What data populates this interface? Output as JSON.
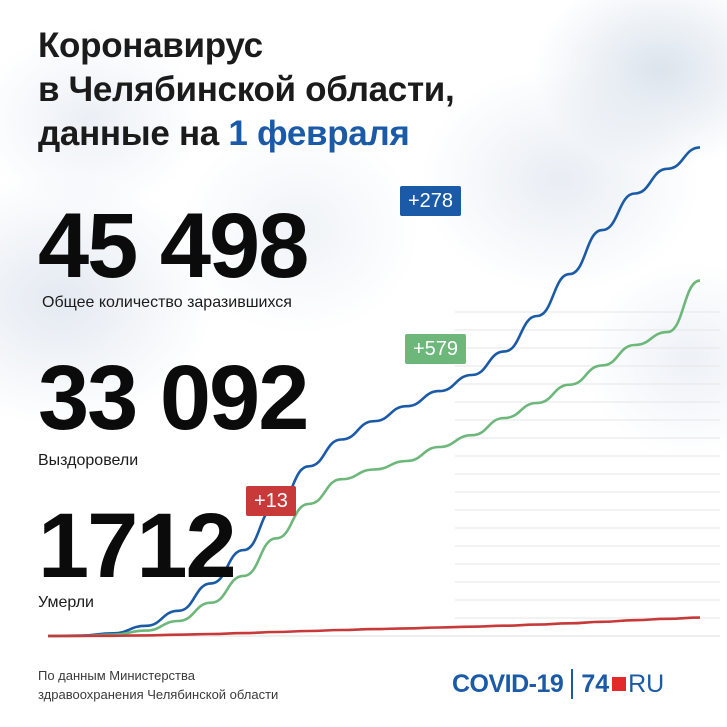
{
  "title": {
    "line1": "Коронавирус",
    "line2": "в Челябинской области,",
    "line3_prefix": "данные на",
    "line3_date": "1 февраля"
  },
  "stats": {
    "infected": {
      "value": "45 498",
      "label": "Общее количество заразившихся",
      "delta": "+278",
      "color": "#1a5aa6"
    },
    "recovered": {
      "value": "33 092",
      "label": "Выздоровели",
      "delta": "+579",
      "color": "#6db77a"
    },
    "deaths": {
      "value": "1712",
      "label": "Умерли",
      "delta": "+13",
      "color": "#c83a3a"
    }
  },
  "footer": {
    "line1": "По данным Министерства",
    "line2": "здравоохранения Челябинской области"
  },
  "logo": {
    "covid": "COVID-19",
    "site_number": "74",
    "site_domain": "RU"
  },
  "chart_data": {
    "type": "line",
    "title": "",
    "xlabel": "",
    "ylabel": "",
    "x": [
      0,
      0.05,
      0.1,
      0.15,
      0.2,
      0.25,
      0.3,
      0.35,
      0.4,
      0.45,
      0.5,
      0.55,
      0.6,
      0.65,
      0.7,
      0.75,
      0.8,
      0.85,
      0.9,
      0.95,
      1.0
    ],
    "ylim": [
      0,
      46000
    ],
    "grid": true,
    "series": [
      {
        "color": "#1a5aa6",
        "values": [
          0,
          40,
          250,
          950,
          2350,
          4900,
          8000,
          12100,
          15800,
          18300,
          20000,
          21400,
          22800,
          24300,
          26500,
          29800,
          33700,
          37800,
          41200,
          43500,
          45498
        ]
      },
      {
        "color": "#6db77a",
        "values": [
          0,
          15,
          120,
          500,
          1400,
          3100,
          5600,
          9100,
          12300,
          14600,
          15500,
          16300,
          17600,
          18700,
          20300,
          21700,
          23400,
          25200,
          27100,
          28300,
          33092
        ]
      },
      {
        "color": "#c83a3a",
        "values": [
          0,
          5,
          20,
          60,
          120,
          190,
          270,
          370,
          470,
          560,
          640,
          710,
          790,
          870,
          960,
          1060,
          1180,
          1320,
          1470,
          1600,
          1712
        ]
      }
    ]
  }
}
